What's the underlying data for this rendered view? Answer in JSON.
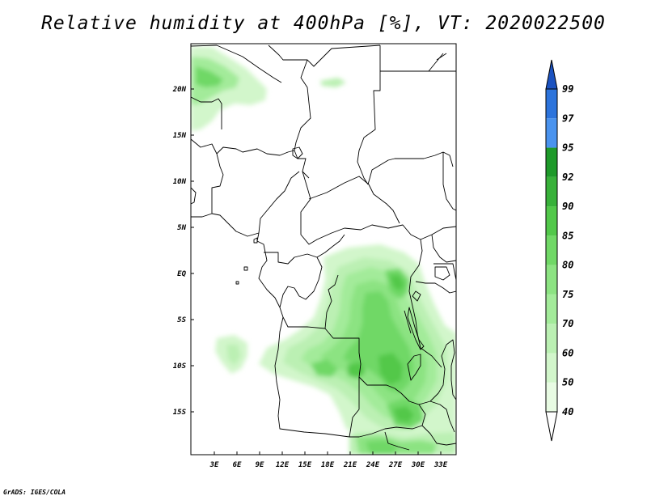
{
  "title": "Relative humidity at 400hPa [%], VT: 2020022500",
  "credit": "GrADS: IGES/COLA",
  "lat_ticks": [
    "20N",
    "15N",
    "10N",
    "5N",
    "EQ",
    "5S",
    "10S",
    "15S"
  ],
  "lon_ticks": [
    "3E",
    "6E",
    "9E",
    "12E",
    "15E",
    "18E",
    "21E",
    "24E",
    "27E",
    "30E",
    "33E"
  ],
  "colorbar": {
    "levels": [
      "40",
      "50",
      "60",
      "70",
      "75",
      "80",
      "85",
      "90",
      "92",
      "95",
      "97",
      "99"
    ],
    "colors": [
      "#ffffff",
      "#e8fbe3",
      "#d2f6cb",
      "#bbf0b3",
      "#a3eb9a",
      "#8ce382",
      "#70d866",
      "#52c84a",
      "#38b13a",
      "#1e9a2a",
      "#4a93ee",
      "#2d74dc",
      "#1b52c0"
    ]
  }
}
